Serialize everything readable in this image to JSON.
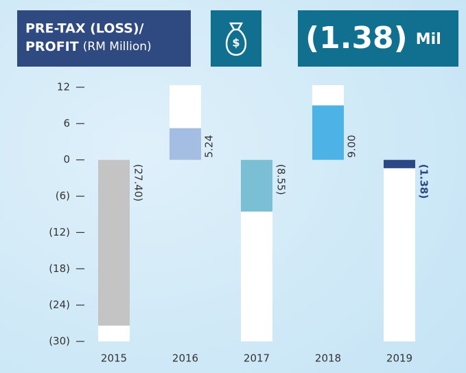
{
  "header": {
    "title_line1": "PRE-TAX (LOSS)/",
    "title_line2_bold": "PROFIT",
    "title_line2_rest": "(RM Million)",
    "value": "(1.38)",
    "unit": "Mil"
  },
  "chart_data": {
    "type": "bar",
    "categories": [
      "2015",
      "2016",
      "2017",
      "2018",
      "2019"
    ],
    "values": [
      -27.4,
      5.24,
      -8.55,
      9.0,
      -1.38
    ],
    "value_labels": [
      "(27.40)",
      "5.24",
      "(8.55)",
      "9.00",
      "(1.38)"
    ],
    "colors": [
      "#c4c4c4",
      "#a3bde3",
      "#7bbfd4",
      "#4db3e6",
      "#2b4784"
    ],
    "ylim": [
      -30,
      12
    ],
    "yticks": [
      12,
      6,
      0,
      {
        "value": -6,
        "label": "(6)"
      },
      {
        "value": -12,
        "label": "(12)"
      },
      {
        "value": -18,
        "label": "(18)"
      },
      {
        "value": -24,
        "label": "(24)"
      },
      {
        "value": -30,
        "label": "(30)"
      }
    ]
  }
}
